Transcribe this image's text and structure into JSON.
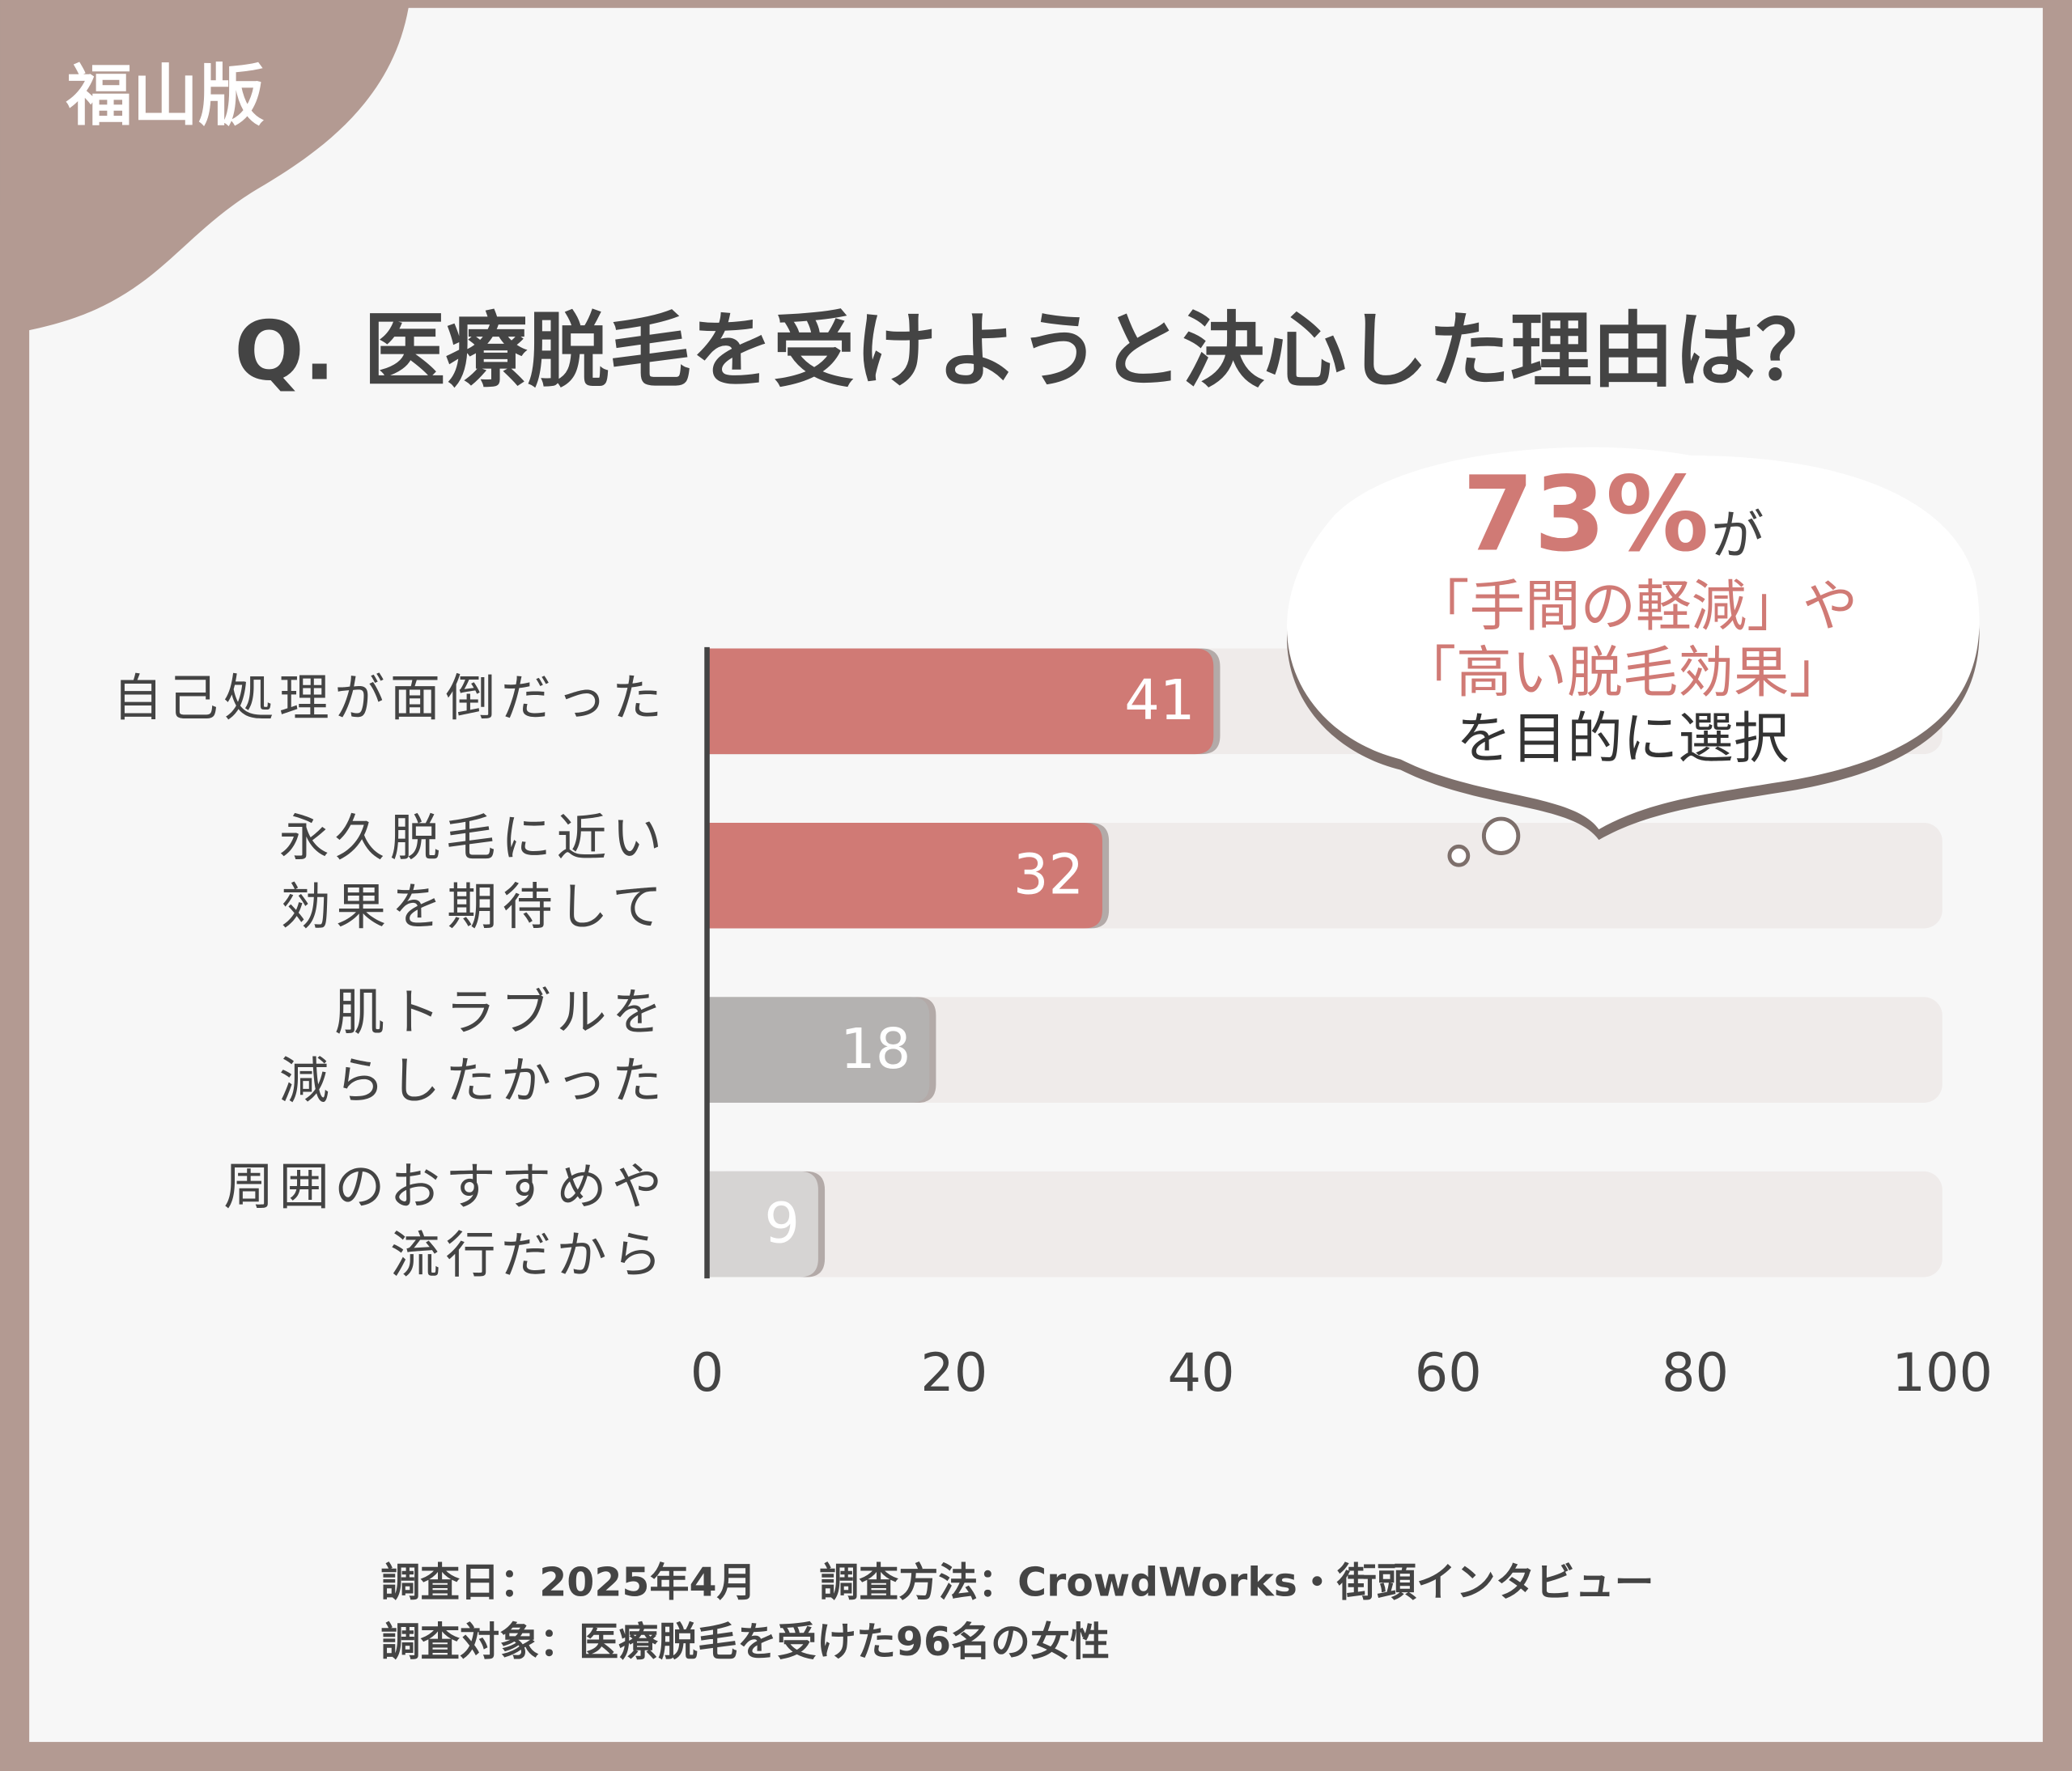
{
  "badge": "福山版",
  "chart_data": {
    "type": "bar",
    "orientation": "horizontal",
    "title": "Q. 医療脱毛を受けようと決心した理由は？",
    "categories": [
      [
        "自己処理が面倒だった"
      ],
      [
        "永久脱毛に近い",
        "効果を期待して"
      ],
      [
        "肌トラブルを",
        "減らしたかった"
      ],
      [
        "周囲のおすすめや",
        "流行だから"
      ]
    ],
    "values": [
      41,
      32,
      18,
      9
    ],
    "colors": [
      "#d07a75",
      "#d07a75",
      "#b4b2b1",
      "#d6d4d3"
    ],
    "xlim": [
      0,
      100
    ],
    "xticks": [
      0,
      20,
      40,
      60,
      80,
      100
    ],
    "annotation": [
      "73%",
      "が",
      "「手間の軽減」や",
      "「高い脱毛効果」",
      "を目的に選択"
    ]
  },
  "footnotes": [
    "調査日：2025年4月",
    "調査方法：CrowdWorks・街頭インタビュー",
    "調査対象：医療脱毛を受けた96名の女性"
  ]
}
